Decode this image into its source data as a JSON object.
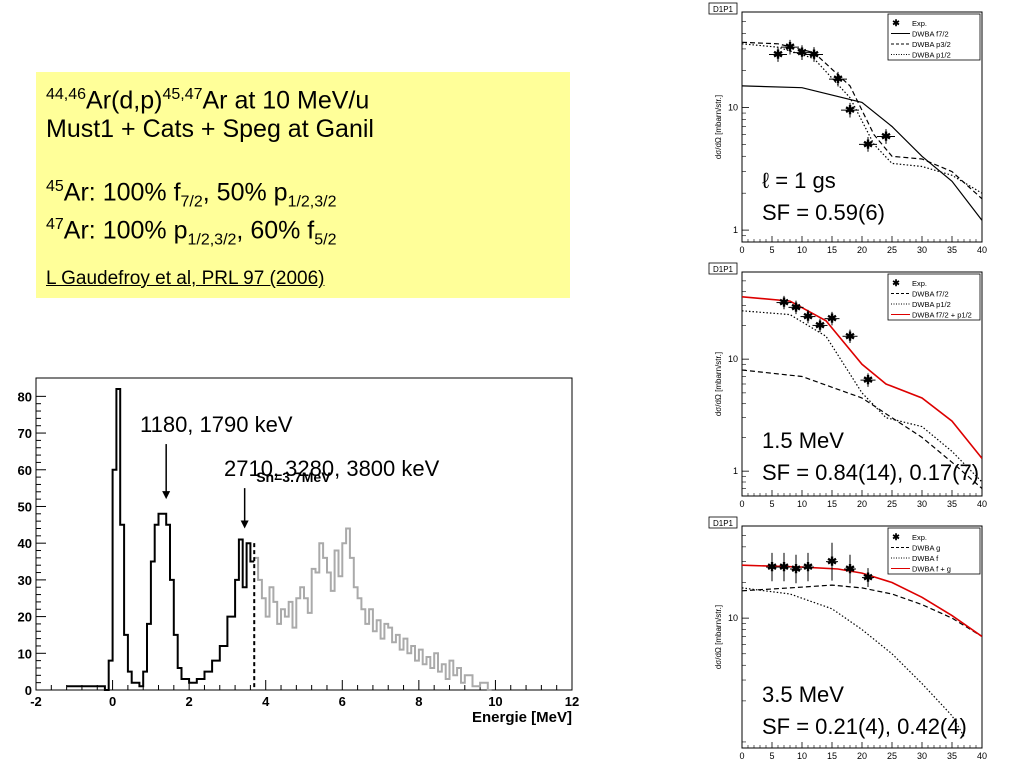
{
  "info": {
    "line1": {
      "pre_sup": "44,46",
      "a": "Ar(d,p)",
      "sup2": "45,47",
      "b": "Ar at 10 MeV/u"
    },
    "line2": "Must1 + Cats + Speg at Ganil",
    "line3": {
      "sup": "45",
      "a": "Ar: 100% f",
      "sub1": "7/2",
      "b": ", 50% p",
      "sub2": "1/2,3/2"
    },
    "line4": {
      "sup": "47",
      "a": "Ar: 100% p",
      "sub1": "1/2,3/2",
      "b": ", 60% f",
      "sub2": "5/2"
    },
    "reference": "L Gaudefroy et al, PRL 97 (2006)"
  },
  "colors": {
    "box_bg": "#ffff99",
    "fit_red": "#dd0000",
    "grey_hist": "#aaaaaa"
  },
  "chart_data": [
    {
      "type": "histogram",
      "xlabel": "Energie [MeV]",
      "xlim": [
        -2,
        12
      ],
      "ylim": [
        0,
        85
      ],
      "xticks": [
        "-2",
        "0",
        "2",
        "4",
        "6",
        "8",
        "10",
        "12"
      ],
      "yticks": [
        "0",
        "10",
        "20",
        "30",
        "40",
        "50",
        "60",
        "70",
        "80"
      ],
      "annotations": {
        "a1": "1180, 1790 keV",
        "a2": "2710, 3280, 3800 keV",
        "sn": "Sn=3.7MeV"
      },
      "sn_value": 3.7,
      "arrow_energies": [
        1.4,
        3.45
      ],
      "series": [
        {
          "color": "#000000",
          "points": [
            [
              -1.2,
              1
            ],
            [
              -0.2,
              0
            ],
            [
              -0.1,
              8
            ],
            [
              0,
              60
            ],
            [
              0.1,
              82
            ],
            [
              0.2,
              45
            ],
            [
              0.3,
              15
            ],
            [
              0.4,
              5
            ],
            [
              0.5,
              2
            ],
            [
              0.7,
              1
            ],
            [
              0.8,
              5
            ],
            [
              0.9,
              18
            ],
            [
              1.0,
              35
            ],
            [
              1.1,
              45
            ],
            [
              1.2,
              48
            ],
            [
              1.3,
              48
            ],
            [
              1.4,
              45
            ],
            [
              1.5,
              30
            ],
            [
              1.6,
              15
            ],
            [
              1.7,
              6
            ],
            [
              1.8,
              3
            ],
            [
              2.0,
              2
            ],
            [
              2.2,
              3
            ],
            [
              2.4,
              5
            ],
            [
              2.6,
              8
            ],
            [
              2.8,
              12
            ],
            [
              3.0,
              20
            ],
            [
              3.2,
              30
            ],
            [
              3.3,
              41
            ],
            [
              3.4,
              28
            ],
            [
              3.5,
              40
            ],
            [
              3.6,
              35
            ]
          ]
        },
        {
          "color": "#aaaaaa",
          "points": [
            [
              3.7,
              36
            ],
            [
              3.8,
              30
            ],
            [
              3.9,
              25
            ],
            [
              4.0,
              20
            ],
            [
              4.1,
              28
            ],
            [
              4.2,
              24
            ],
            [
              4.3,
              18
            ],
            [
              4.4,
              22
            ],
            [
              4.5,
              20
            ],
            [
              4.6,
              24
            ],
            [
              4.7,
              17
            ],
            [
              4.8,
              25
            ],
            [
              4.9,
              28
            ],
            [
              5.0,
              25
            ],
            [
              5.1,
              21
            ],
            [
              5.2,
              33
            ],
            [
              5.3,
              32
            ],
            [
              5.4,
              40
            ],
            [
              5.5,
              36
            ],
            [
              5.6,
              32
            ],
            [
              5.7,
              27
            ],
            [
              5.8,
              38
            ],
            [
              5.9,
              31
            ],
            [
              6.0,
              40
            ],
            [
              6.1,
              44
            ],
            [
              6.2,
              36
            ],
            [
              6.3,
              28
            ],
            [
              6.4,
              25
            ],
            [
              6.5,
              22
            ],
            [
              6.6,
              18
            ],
            [
              6.7,
              22
            ],
            [
              6.8,
              16
            ],
            [
              6.9,
              19
            ],
            [
              7.0,
              14
            ],
            [
              7.1,
              18
            ],
            [
              7.2,
              17
            ],
            [
              7.3,
              13
            ],
            [
              7.4,
              15
            ],
            [
              7.5,
              11
            ],
            [
              7.6,
              14
            ],
            [
              7.7,
              10
            ],
            [
              7.8,
              12
            ],
            [
              7.9,
              8
            ],
            [
              8.0,
              11
            ],
            [
              8.1,
              7
            ],
            [
              8.2,
              9
            ],
            [
              8.3,
              6
            ],
            [
              8.4,
              10
            ],
            [
              8.5,
              5
            ],
            [
              8.6,
              7
            ],
            [
              8.7,
              3
            ],
            [
              8.8,
              8
            ],
            [
              8.9,
              4
            ],
            [
              9.0,
              6
            ],
            [
              9.1,
              2
            ],
            [
              9.2,
              4
            ],
            [
              9.4,
              1
            ],
            [
              9.6,
              2
            ],
            [
              9.8,
              0
            ]
          ]
        }
      ]
    },
    {
      "type": "line",
      "tag": "D1P1",
      "xlim": [
        0,
        40
      ],
      "ylim": [
        0.8,
        60
      ],
      "yscale": "log",
      "ylabel": "dσ/dΩ [mbarn/str.]",
      "xticks": [
        "0",
        "5",
        "10",
        "15",
        "20",
        "25",
        "30",
        "35",
        "40"
      ],
      "yticks": [
        {
          "v": 1,
          "label": "1"
        },
        {
          "v": 10,
          "label": "10"
        }
      ],
      "legend": [
        "Exp.",
        "DWBA f7/2",
        "DWBA p3/2",
        "DWBA p1/2"
      ],
      "note1": "ℓ = 1 gs",
      "note2": "SF = 0.59(6)",
      "points": [
        [
          6,
          27,
          3,
          1.5
        ],
        [
          8,
          31,
          3,
          1.5
        ],
        [
          10,
          28,
          3,
          1.5
        ],
        [
          12,
          27,
          3,
          1.5
        ],
        [
          16,
          17,
          3,
          1.5
        ],
        [
          18,
          9.5,
          3,
          1.5
        ],
        [
          21,
          5,
          3,
          1.5
        ],
        [
          24,
          5.8,
          3,
          1.5
        ]
      ],
      "curves": [
        {
          "style": "solid",
          "color": "#000000",
          "points": [
            [
              0,
              15
            ],
            [
              10,
              14.5
            ],
            [
              20,
              11
            ],
            [
              25,
              7
            ],
            [
              30,
              4
            ],
            [
              35,
              2.5
            ],
            [
              40,
              1.2
            ]
          ]
        },
        {
          "style": "dashed",
          "color": "#000000",
          "points": [
            [
              0,
              34
            ],
            [
              6,
              33
            ],
            [
              12,
              28
            ],
            [
              18,
              15
            ],
            [
              22,
              6
            ],
            [
              25,
              4
            ],
            [
              30,
              3.8
            ],
            [
              35,
              3
            ],
            [
              40,
              1.8
            ]
          ]
        },
        {
          "style": "dotted",
          "color": "#000000",
          "points": [
            [
              0,
              33
            ],
            [
              6,
              31
            ],
            [
              12,
              25
            ],
            [
              18,
              12
            ],
            [
              22,
              5
            ],
            [
              25,
              3.5
            ],
            [
              30,
              3.3
            ],
            [
              35,
              2.8
            ],
            [
              40,
              2
            ]
          ]
        }
      ]
    },
    {
      "type": "line",
      "tag": "D1P1",
      "xlim": [
        0,
        40
      ],
      "ylim": [
        0.6,
        60
      ],
      "yscale": "log",
      "ylabel": "dσ/dΩ [mbarn/str.]",
      "xticks": [
        "0",
        "5",
        "10",
        "15",
        "20",
        "25",
        "30",
        "35",
        "40"
      ],
      "yticks": [
        {
          "v": 1,
          "label": "1"
        },
        {
          "v": 10,
          "label": "10"
        }
      ],
      "legend": [
        "Exp.",
        "DWBA f7/2",
        "DWBA p1/2",
        "DWBA f7/2 + p1/2"
      ],
      "note1": "1.5 MeV",
      "note2": "SF = 0.84(14), 0.17(7)",
      "points": [
        [
          7,
          32,
          2.5,
          1.5
        ],
        [
          9,
          29,
          2.5,
          1.5
        ],
        [
          11,
          24,
          2.5,
          1.5
        ],
        [
          13,
          20,
          2.5,
          1.5
        ],
        [
          15,
          23,
          2.5,
          1.5
        ],
        [
          18,
          16,
          2.5,
          1.5
        ],
        [
          21,
          6.5,
          2.5,
          1.5
        ]
      ],
      "curves": [
        {
          "style": "dashed",
          "color": "#000000",
          "points": [
            [
              0,
              8
            ],
            [
              10,
              7
            ],
            [
              20,
              4.5
            ],
            [
              25,
              3
            ],
            [
              30,
              2
            ],
            [
              35,
              1.2
            ],
            [
              40,
              0.7
            ]
          ]
        },
        {
          "style": "dotted",
          "color": "#000000",
          "points": [
            [
              0,
              27
            ],
            [
              8,
              25
            ],
            [
              14,
              16
            ],
            [
              20,
              5
            ],
            [
              24,
              3
            ],
            [
              30,
              2.5
            ],
            [
              35,
              1.5
            ],
            [
              40,
              0.8
            ]
          ]
        },
        {
          "style": "solid",
          "color": "#dd0000",
          "points": [
            [
              0,
              36
            ],
            [
              8,
              33
            ],
            [
              14,
              22
            ],
            [
              20,
              9
            ],
            [
              24,
              6
            ],
            [
              30,
              4.5
            ],
            [
              35,
              2.8
            ],
            [
              40,
              1.3
            ]
          ]
        }
      ]
    },
    {
      "type": "line",
      "tag": "D1P1",
      "xlim": [
        0,
        40
      ],
      "ylim": [
        0.8,
        60
      ],
      "yscale": "log",
      "ylabel": "dσ/dΩ [mbarn/str.]",
      "xticks": [
        "0",
        "5",
        "10",
        "15",
        "20",
        "25",
        "30",
        "35",
        "40"
      ],
      "yticks": [
        {
          "v": 10,
          "label": "10"
        }
      ],
      "legend": [
        "Exp.",
        "DWBA g",
        "DWBA f",
        "DWBA f + g"
      ],
      "note1": "3.5 MeV",
      "note2": "SF = 0.21(4), 0.42(4)",
      "points": [
        [
          5,
          27,
          2,
          3
        ],
        [
          7,
          27,
          2,
          3
        ],
        [
          9,
          26,
          2,
          3
        ],
        [
          11,
          27,
          2,
          3
        ],
        [
          15,
          30,
          2,
          4
        ],
        [
          18,
          26,
          2,
          3
        ],
        [
          21,
          22,
          2,
          2
        ]
      ],
      "curves": [
        {
          "style": "dashed",
          "color": "#000000",
          "points": [
            [
              0,
              17
            ],
            [
              8,
              18
            ],
            [
              15,
              19
            ],
            [
              20,
              18
            ],
            [
              25,
              16
            ],
            [
              30,
              13
            ],
            [
              35,
              10
            ],
            [
              40,
              7
            ]
          ]
        },
        {
          "style": "dotted",
          "color": "#000000",
          "points": [
            [
              0,
              18
            ],
            [
              8,
              16
            ],
            [
              15,
              12
            ],
            [
              20,
              8
            ],
            [
              25,
              5
            ],
            [
              30,
              2.8
            ],
            [
              35,
              1.5
            ],
            [
              37,
              1.0
            ]
          ]
        },
        {
          "style": "solid",
          "color": "#dd0000",
          "points": [
            [
              0,
              28
            ],
            [
              10,
              27
            ],
            [
              16,
              26
            ],
            [
              20,
              24
            ],
            [
              25,
              20
            ],
            [
              30,
              15
            ],
            [
              35,
              10.5
            ],
            [
              40,
              7
            ]
          ]
        }
      ]
    }
  ]
}
